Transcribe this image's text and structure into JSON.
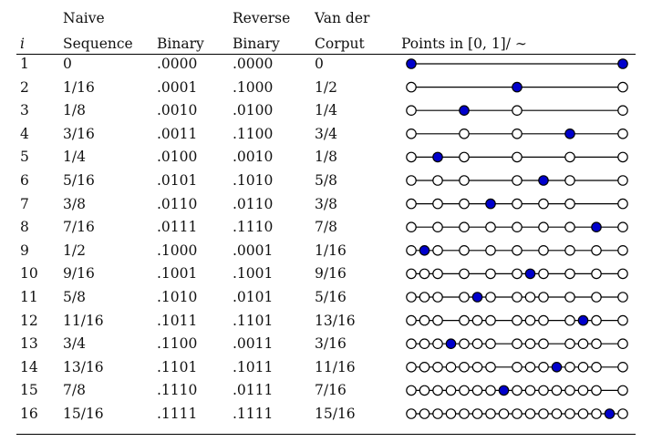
{
  "headers": {
    "i": "i",
    "naive_line1": "Naive",
    "naive_line2": "Sequence",
    "binary": "Binary",
    "reverse_line1": "Reverse",
    "reverse_line2": "Binary",
    "vdc_line1": "Van der",
    "vdc_line2": "Corput",
    "points": "Points in [0, 1]/ ∼"
  },
  "rows": [
    {
      "i": "1",
      "naive": "0",
      "binary": ".0000",
      "reverse": ".0000",
      "vdc": "0",
      "filled": 0,
      "open": [],
      "filled_extra": [
        16
      ]
    },
    {
      "i": "2",
      "naive": "1/16",
      "binary": ".0001",
      "reverse": ".1000",
      "vdc": "1/2",
      "filled": 8,
      "open": [
        0,
        16
      ],
      "filled_extra": []
    },
    {
      "i": "3",
      "naive": "1/8",
      "binary": ".0010",
      "reverse": ".0100",
      "vdc": "1/4",
      "filled": 4,
      "open": [
        0,
        8,
        16
      ],
      "filled_extra": []
    },
    {
      "i": "4",
      "naive": "3/16",
      "binary": ".0011",
      "reverse": ".1100",
      "vdc": "3/4",
      "filled": 12,
      "open": [
        0,
        4,
        8,
        16
      ],
      "filled_extra": []
    },
    {
      "i": "5",
      "naive": "1/4",
      "binary": ".0100",
      "reverse": ".0010",
      "vdc": "1/8",
      "filled": 2,
      "open": [
        0,
        4,
        8,
        12,
        16
      ],
      "filled_extra": []
    },
    {
      "i": "6",
      "naive": "5/16",
      "binary": ".0101",
      "reverse": ".1010",
      "vdc": "5/8",
      "filled": 10,
      "open": [
        0,
        2,
        4,
        8,
        12,
        16
      ],
      "filled_extra": []
    },
    {
      "i": "7",
      "naive": "3/8",
      "binary": ".0110",
      "reverse": ".0110",
      "vdc": "3/8",
      "filled": 6,
      "open": [
        0,
        2,
        4,
        8,
        10,
        12,
        16
      ],
      "filled_extra": []
    },
    {
      "i": "8",
      "naive": "7/16",
      "binary": ".0111",
      "reverse": ".1110",
      "vdc": "7/8",
      "filled": 14,
      "open": [
        0,
        2,
        4,
        6,
        8,
        10,
        12,
        16
      ],
      "filled_extra": []
    },
    {
      "i": "9",
      "naive": "1/2",
      "binary": ".1000",
      "reverse": ".0001",
      "vdc": "1/16",
      "filled": 1,
      "open": [
        0,
        2,
        4,
        6,
        8,
        10,
        12,
        14,
        16
      ],
      "filled_extra": []
    },
    {
      "i": "10",
      "naive": "9/16",
      "binary": ".1001",
      "reverse": ".1001",
      "vdc": "9/16",
      "filled": 9,
      "open": [
        0,
        1,
        2,
        4,
        6,
        8,
        10,
        12,
        14,
        16
      ],
      "filled_extra": []
    },
    {
      "i": "11",
      "naive": "5/8",
      "binary": ".1010",
      "reverse": ".0101",
      "vdc": "5/16",
      "filled": 5,
      "open": [
        0,
        1,
        2,
        4,
        6,
        8,
        9,
        10,
        12,
        14,
        16
      ],
      "filled_extra": []
    },
    {
      "i": "12",
      "naive": "11/16",
      "binary": ".1011",
      "reverse": ".1101",
      "vdc": "13/16",
      "filled": 13,
      "open": [
        0,
        1,
        2,
        4,
        5,
        6,
        8,
        9,
        10,
        12,
        14,
        16
      ],
      "filled_extra": []
    },
    {
      "i": "13",
      "naive": "3/4",
      "binary": ".1100",
      "reverse": ".0011",
      "vdc": "3/16",
      "filled": 3,
      "open": [
        0,
        1,
        2,
        4,
        5,
        6,
        8,
        9,
        10,
        12,
        13,
        14,
        16
      ],
      "filled_extra": []
    },
    {
      "i": "14",
      "naive": "13/16",
      "binary": ".1101",
      "reverse": ".1011",
      "vdc": "11/16",
      "filled": 11,
      "open": [
        0,
        1,
        2,
        3,
        4,
        5,
        6,
        8,
        9,
        10,
        12,
        13,
        14,
        16
      ],
      "filled_extra": []
    },
    {
      "i": "15",
      "naive": "7/8",
      "binary": ".1110",
      "reverse": ".0111",
      "vdc": "7/16",
      "filled": 7,
      "open": [
        0,
        1,
        2,
        3,
        4,
        5,
        6,
        8,
        9,
        10,
        11,
        12,
        13,
        14,
        16
      ],
      "filled_extra": []
    },
    {
      "i": "16",
      "naive": "15/16",
      "binary": ".1111",
      "reverse": ".1111",
      "vdc": "15/16",
      "filled": 15,
      "open": [
        0,
        1,
        2,
        3,
        4,
        5,
        6,
        7,
        8,
        9,
        10,
        11,
        12,
        13,
        14,
        16
      ],
      "filled_extra": []
    }
  ],
  "colors": {
    "filled_point": "#0000cc",
    "line": "#000000"
  }
}
